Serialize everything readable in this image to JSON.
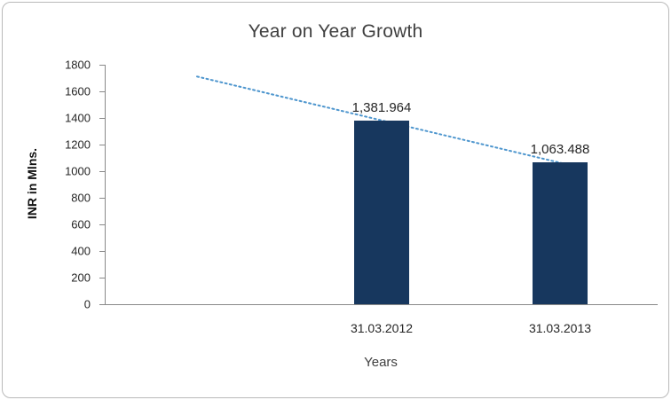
{
  "chart_data": {
    "type": "bar",
    "title": "Year on Year Growth",
    "xlabel": "Years",
    "ylabel": "INR in Mlns.",
    "categories": [
      "31.03.2012",
      "31.03.2013"
    ],
    "values": [
      1381.964,
      1063.488
    ],
    "data_labels": [
      "1,381.964",
      "1,063.488"
    ],
    "ylim": [
      0,
      1800
    ],
    "ytick_step": 200,
    "yticks": [
      "1800",
      "1600",
      "1400",
      "1200",
      "1000",
      "800",
      "600",
      "400",
      "200",
      "0"
    ],
    "grid": "off",
    "legend": "none",
    "bar_color": "#17375E",
    "trendline": {
      "type": "linear",
      "style": "dotted",
      "color": "#4E96CE"
    }
  }
}
